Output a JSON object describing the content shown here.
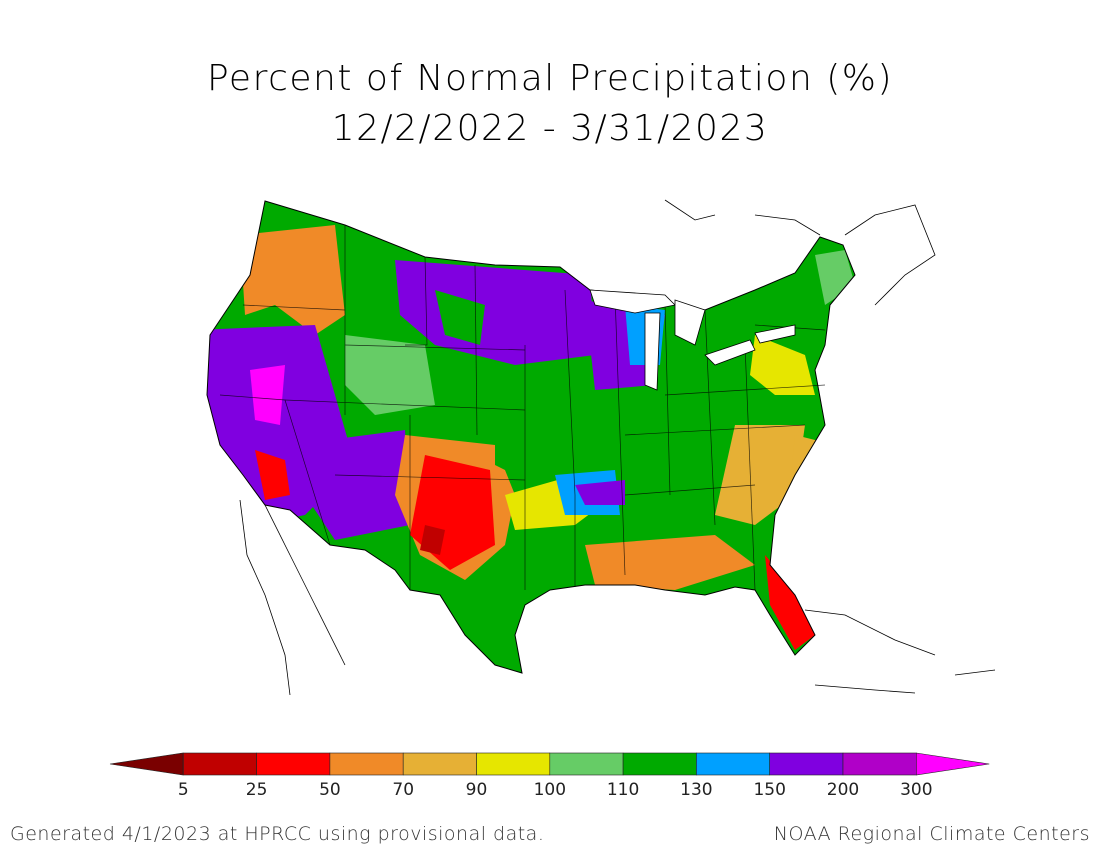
{
  "title_line1": "Percent of Normal Precipitation (%)",
  "title_line2": "12/2/2022 - 3/31/2023",
  "legend": {
    "bins": [
      {
        "from": null,
        "to": 5,
        "color": "#7a0000"
      },
      {
        "from": 5,
        "to": 25,
        "color": "#c00000"
      },
      {
        "from": 25,
        "to": 50,
        "color": "#ff0000"
      },
      {
        "from": 50,
        "to": 70,
        "color": "#f08a28"
      },
      {
        "from": 70,
        "to": 90,
        "color": "#e6b035"
      },
      {
        "from": 90,
        "to": 100,
        "color": "#e6e600"
      },
      {
        "from": 100,
        "to": 110,
        "color": "#66cc66"
      },
      {
        "from": 110,
        "to": 130,
        "color": "#00aa00"
      },
      {
        "from": 130,
        "to": 150,
        "color": "#00a0ff"
      },
      {
        "from": 150,
        "to": 200,
        "color": "#8000e0"
      },
      {
        "from": 200,
        "to": 300,
        "color": "#b000c8"
      },
      {
        "from": 300,
        "to": null,
        "color": "#ff00ff"
      }
    ],
    "tick_labels": [
      "5",
      "25",
      "50",
      "70",
      "90",
      "100",
      "110",
      "130",
      "150",
      "200",
      "300"
    ]
  },
  "footer_left": "Generated 4/1/2023 at HPRCC using provisional data.",
  "footer_right": "NOAA Regional Climate Centers"
}
